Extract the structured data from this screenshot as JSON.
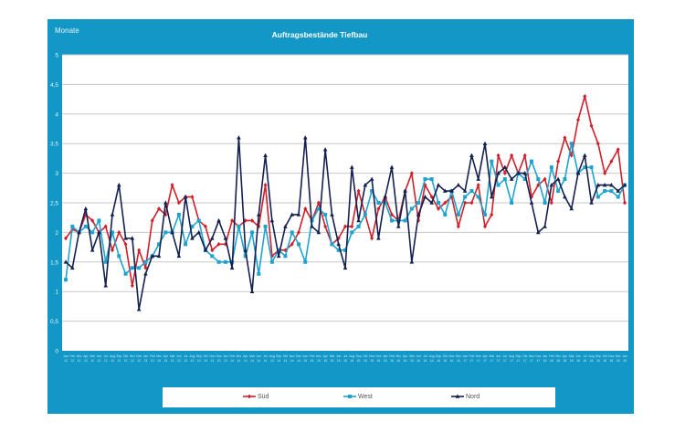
{
  "chart_data": {
    "type": "line",
    "title": "Auftragsbestände Tiefbau",
    "ylabel": "Monate",
    "xlabel": "",
    "ylim": [
      0,
      5
    ],
    "yticks": [
      "0",
      "0,5",
      "1",
      "1,5",
      "2",
      "2,5",
      "3",
      "3,5",
      "4",
      "4,5",
      "5"
    ],
    "grid": true,
    "legend_position": "bottom",
    "categories": [
      "Jan 12",
      "Feb 12",
      "Mrz 12",
      "Apr 12",
      "Mai 12",
      "Jun 12",
      "Jul 12",
      "Aug 12",
      "Sep 12",
      "Okt 12",
      "Nov 12",
      "Dez 12",
      "Jan 13",
      "Feb 13",
      "Mrz 13",
      "Apr 13",
      "Mai 13",
      "Jun 13",
      "Jul 13",
      "Aug 13",
      "Sep 13",
      "Okt 13",
      "Nov 13",
      "Dez 13",
      "Jan 14",
      "Feb 14",
      "Mrz 14",
      "Apr 14",
      "Mai 14",
      "Jun 14",
      "Jul 14",
      "Aug 14",
      "Sep 14",
      "Okt 14",
      "Nov 14",
      "Dez 14",
      "Jan 15",
      "Feb 15",
      "Mrz 15",
      "Apr 15",
      "Mai 15",
      "Jun 15",
      "Jul 15",
      "Aug 15",
      "Sep 15",
      "Okt 15",
      "Nov 15",
      "Dez 15",
      "Jan 16",
      "Feb 16",
      "Mrz 16",
      "Apr 16",
      "Mai 16",
      "Jun 16",
      "Jul 16",
      "Aug 16",
      "Sep 16",
      "Okt 16",
      "Nov 16",
      "Dez 16",
      "Jan 17",
      "Feb 17",
      "Mrz 17",
      "Apr 17",
      "Mai 17",
      "Jun 17",
      "Jul 17",
      "Aug 17",
      "Sep 17",
      "Okt 17",
      "Nov 17",
      "Dez 17",
      "Jan 18",
      "Feb 18",
      "Mrz 18",
      "Apr 18",
      "Mai 18",
      "Jun 18",
      "Jul 18",
      "Aug 18",
      "Sep 18",
      "Okt 18",
      "Nov 18",
      "Dez 18",
      "Jan 19"
    ],
    "series": [
      {
        "name": "Süd",
        "color": "#d0202a",
        "marker": "diamond",
        "values": [
          1.9,
          2.05,
          2.0,
          2.3,
          2.2,
          2.0,
          2.1,
          1.7,
          2.0,
          1.8,
          1.1,
          1.7,
          1.4,
          2.2,
          2.4,
          2.3,
          2.8,
          2.5,
          2.6,
          2.6,
          2.2,
          2.1,
          1.7,
          1.8,
          1.8,
          2.2,
          2.1,
          2.2,
          2.2,
          2.1,
          2.8,
          1.6,
          1.7,
          1.7,
          1.8,
          2.0,
          2.4,
          2.2,
          2.5,
          2.1,
          1.8,
          1.9,
          2.1,
          2.1,
          2.7,
          2.3,
          1.9,
          2.4,
          2.6,
          2.3,
          2.2,
          2.7,
          3.0,
          2.2,
          2.8,
          2.6,
          2.4,
          2.5,
          2.6,
          2.1,
          2.5,
          2.5,
          2.8,
          2.1,
          2.3,
          3.3,
          3.0,
          3.3,
          3.0,
          3.3,
          2.6,
          2.8,
          2.9,
          2.5,
          3.2,
          3.6,
          3.3,
          3.9,
          4.3,
          3.8,
          3.5,
          3.0,
          3.2,
          3.4,
          2.5
        ]
      },
      {
        "name": "West",
        "color": "#1ea3cf",
        "marker": "square",
        "values": [
          1.2,
          2.1,
          2.0,
          2.1,
          2.0,
          2.2,
          1.5,
          2.0,
          1.6,
          1.3,
          1.4,
          1.4,
          1.5,
          1.6,
          1.8,
          2.0,
          2.0,
          2.3,
          1.8,
          2.1,
          2.2,
          1.7,
          1.6,
          1.5,
          1.5,
          1.5,
          2.1,
          1.6,
          2.0,
          1.3,
          2.1,
          1.5,
          1.7,
          1.6,
          2.0,
          1.8,
          1.5,
          2.2,
          2.4,
          2.3,
          1.8,
          1.7,
          1.7,
          2.0,
          2.1,
          2.3,
          2.7,
          2.5,
          2.5,
          2.2,
          2.2,
          2.2,
          2.4,
          2.5,
          2.9,
          2.9,
          2.5,
          2.3,
          2.7,
          2.3,
          2.6,
          2.7,
          2.6,
          2.3,
          3.2,
          2.8,
          2.9,
          2.5,
          3.0,
          2.9,
          3.2,
          2.9,
          2.5,
          3.1,
          2.7,
          2.9,
          3.5,
          3.0,
          3.1,
          3.1,
          2.6,
          2.7,
          2.7,
          2.6,
          2.8
        ]
      },
      {
        "name": "Nord",
        "color": "#14204f",
        "marker": "triangle",
        "values": [
          1.5,
          1.4,
          2.0,
          2.4,
          1.7,
          2.0,
          1.1,
          2.3,
          2.8,
          1.9,
          1.9,
          0.7,
          1.3,
          1.6,
          1.6,
          2.5,
          2.0,
          1.6,
          2.6,
          1.9,
          2.0,
          1.7,
          1.9,
          2.2,
          1.9,
          1.4,
          3.6,
          1.7,
          1.0,
          2.3,
          3.3,
          2.2,
          1.6,
          2.1,
          2.3,
          2.3,
          3.6,
          2.1,
          2.0,
          3.4,
          2.3,
          1.8,
          1.4,
          3.1,
          2.2,
          2.8,
          2.9,
          1.9,
          2.6,
          3.1,
          2.1,
          2.7,
          1.5,
          2.3,
          2.6,
          2.5,
          2.8,
          2.7,
          2.7,
          2.8,
          2.7,
          3.3,
          2.9,
          3.5,
          2.6,
          3.0,
          3.1,
          2.9,
          3.0,
          3.0,
          2.5,
          2.0,
          2.1,
          2.8,
          2.9,
          2.6,
          2.4,
          3.0,
          3.3,
          2.5,
          2.8,
          2.8,
          2.8,
          2.7,
          2.8
        ]
      }
    ]
  }
}
